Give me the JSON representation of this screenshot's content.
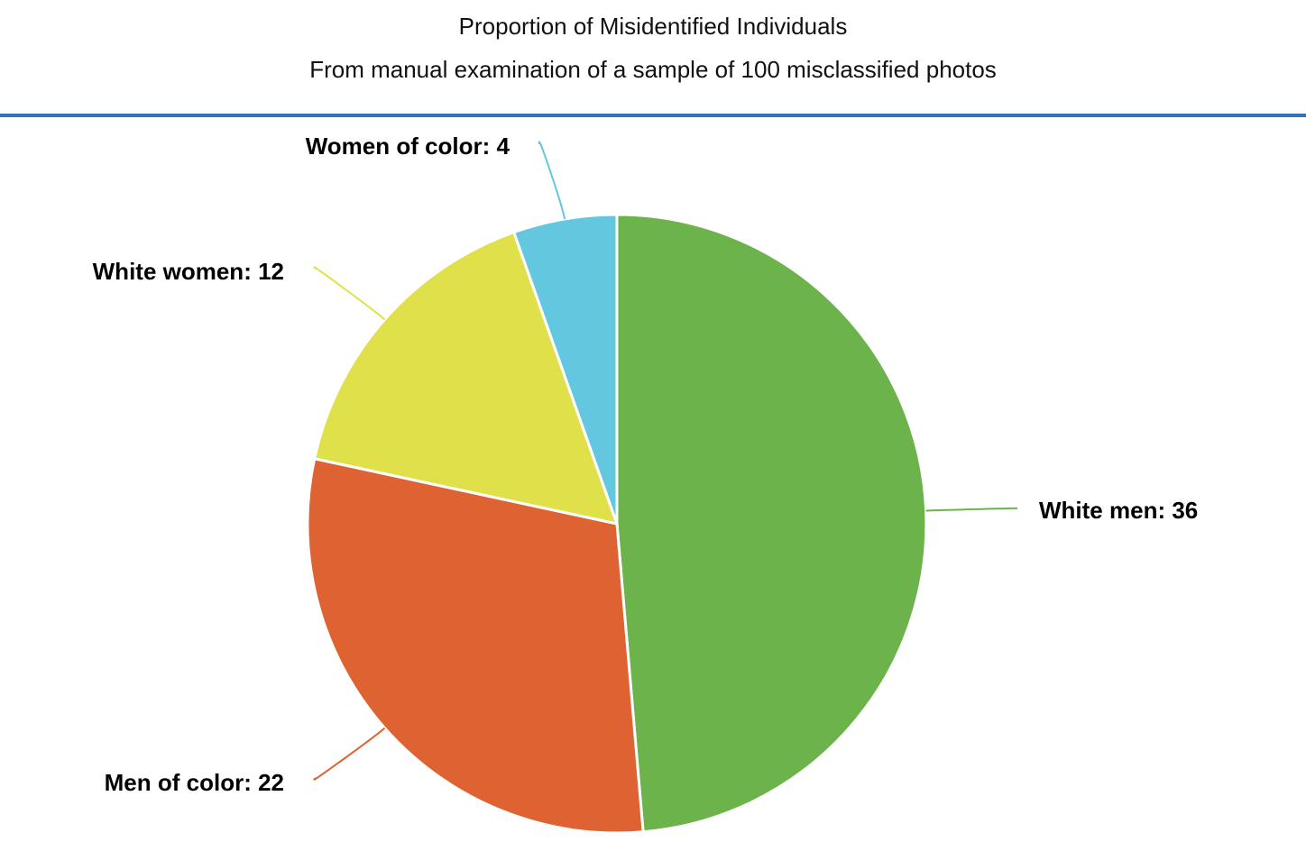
{
  "header": {
    "title": "Proportion of Misidentified Individuals",
    "subtitle": "From manual examination of a sample of 100 misclassified photos",
    "rule_color": "#3a70b8"
  },
  "chart_data": {
    "type": "pie",
    "title": "Proportion of Misidentified Individuals",
    "subtitle": "From manual examination of a sample of 100 misclassified photos",
    "start": "12 o'clock",
    "direction": "clockwise",
    "slices": [
      {
        "label": "White men: 36",
        "name": "White men",
        "value": 36,
        "color": "#6bb34a"
      },
      {
        "label": "Men of color: 22",
        "name": "Men of color",
        "value": 22,
        "color": "#de6232"
      },
      {
        "label": "White women: 12",
        "name": "White women",
        "value": 12,
        "color": "#dfe04a"
      },
      {
        "label": "Women of color: 4",
        "name": "Women of color",
        "value": 4,
        "color": "#64c7e0"
      }
    ]
  }
}
